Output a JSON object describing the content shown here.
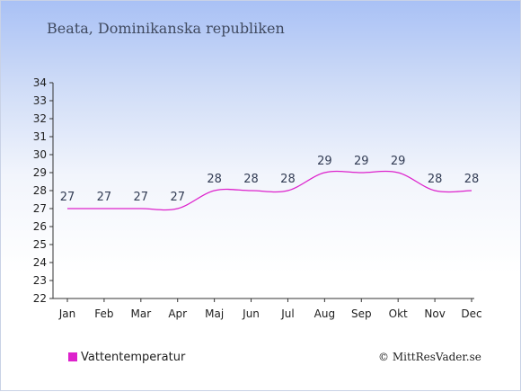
{
  "title": "Beata, Dominikanska republiken",
  "credit": "© MittResVader.se",
  "colors": {
    "series": "#dd22cc",
    "axis": "#333333"
  },
  "chart_data": {
    "type": "line",
    "categories": [
      "Jan",
      "Feb",
      "Mar",
      "Apr",
      "Maj",
      "Jun",
      "Jul",
      "Aug",
      "Sep",
      "Okt",
      "Nov",
      "Dec"
    ],
    "series": [
      {
        "name": "Vattentemperatur",
        "values": [
          27,
          27,
          27,
          27,
          28,
          28,
          28,
          29,
          29,
          29,
          28,
          28
        ]
      }
    ],
    "data_labels": [
      "27",
      "27",
      "27",
      "27",
      "28",
      "28",
      "28",
      "29",
      "29",
      "29",
      "28",
      "28"
    ],
    "yticks": [
      22,
      23,
      24,
      25,
      26,
      27,
      28,
      29,
      30,
      31,
      32,
      33,
      34
    ],
    "ylim": [
      22,
      34
    ],
    "grid": false,
    "legend": "bottom-left"
  }
}
